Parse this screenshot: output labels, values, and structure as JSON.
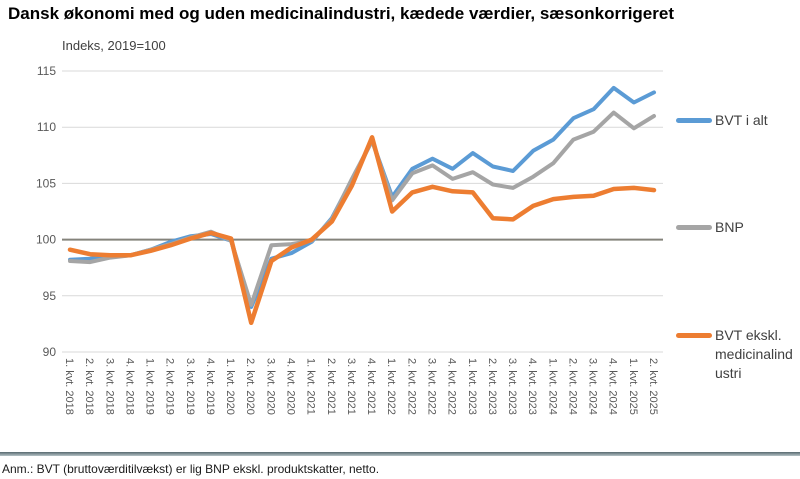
{
  "chart": {
    "title": "Dansk økonomi med og uden medicinalindustri, kædede værdier, sæsonkorrigeret",
    "subtitle": "Indeks, 2019=100",
    "footnote": "Anm.: BVT (bruttoværditilvækst) er lig BNP ekskl. produktskatter, netto."
  },
  "chart_data": {
    "type": "line",
    "title": "Dansk økonomi med og uden medicinalindustri, kædede værdier, sæsonkorrigeret",
    "subtitle": "Indeks, 2019=100",
    "categories": [
      "1. kvt. 2018",
      "2. kvt. 2018",
      "3. kvt. 2018",
      "4. kvt. 2018",
      "1. kvt. 2019",
      "2. kvt. 2019",
      "3. kvt. 2019",
      "4. kvt. 2019",
      "1. kvt. 2020",
      "2. kvt. 2020",
      "3. kvt. 2020",
      "4. kvt. 2020",
      "1. kvt. 2021",
      "2. kvt. 2021",
      "3. kvt. 2021",
      "4. kvt. 2021",
      "1. kvt. 2022",
      "2. kvt. 2022",
      "3. kvt. 2022",
      "4. kvt. 2022",
      "1. kvt. 2023",
      "2. kvt. 2023",
      "3. kvt. 2023",
      "4. kvt. 2023",
      "1. kvt. 2024",
      "2. kvt. 2024",
      "3. kvt. 2024",
      "4. kvt. 2024",
      "1. kvt. 2025",
      "2. kvt. 2025"
    ],
    "series": [
      {
        "name": "BVT i alt",
        "color": "#5B9BD5",
        "values": [
          98.2,
          98.3,
          98.5,
          98.6,
          99.1,
          99.8,
          100.3,
          100.5,
          99.9,
          94.0,
          98.3,
          98.8,
          99.8,
          101.9,
          105.3,
          108.8,
          103.8,
          106.3,
          107.2,
          106.3,
          107.7,
          106.5,
          106.1,
          107.9,
          108.9,
          110.8,
          111.6,
          113.5,
          112.2,
          113.1
        ]
      },
      {
        "name": "BNP",
        "color": "#A5A5A5",
        "values": [
          98.1,
          98.0,
          98.4,
          98.6,
          99.1,
          99.6,
          100.2,
          100.7,
          99.9,
          94.2,
          99.5,
          99.6,
          99.9,
          101.8,
          105.4,
          108.8,
          103.5,
          105.9,
          106.6,
          105.4,
          106.0,
          104.9,
          104.6,
          105.6,
          106.8,
          108.9,
          109.6,
          111.3,
          109.9,
          111.0
        ]
      },
      {
        "name": "BVT ekskl. medicinalindustri",
        "color": "#ED7D31",
        "values": [
          99.1,
          98.7,
          98.6,
          98.6,
          99.0,
          99.5,
          100.1,
          100.6,
          100.1,
          92.6,
          98.1,
          99.3,
          100.0,
          101.6,
          104.8,
          109.1,
          102.5,
          104.2,
          104.7,
          104.3,
          104.2,
          101.9,
          101.8,
          103.0,
          103.6,
          103.8,
          103.9,
          104.5,
          104.6,
          104.4
        ]
      }
    ],
    "ylabel": "Indeks, 2019=100",
    "xlabel": "",
    "ylim": [
      90,
      115
    ],
    "yticks": [
      90,
      95,
      100,
      105,
      110,
      115
    ],
    "baseline": 100,
    "grid": true,
    "legend_position": "right"
  },
  "colors": {
    "grid": "#D9D9D9",
    "baseline": "#84837B",
    "axis_text": "#595959",
    "divider_top": "#57696f",
    "divider_bottom": "#b6c3c7"
  }
}
